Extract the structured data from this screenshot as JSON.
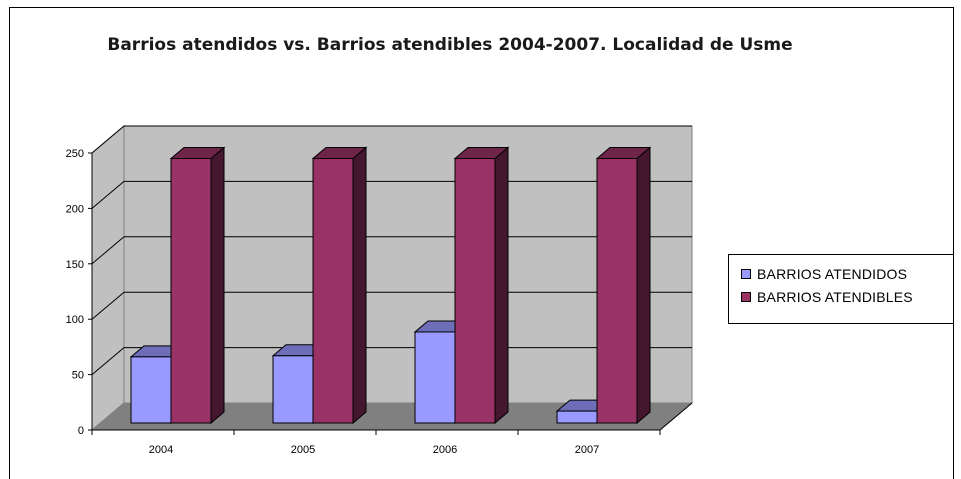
{
  "chart_data": {
    "type": "bar",
    "title": "Barrios atendidos vs. Barrios atendibles 2004-2007. Localidad de Usme",
    "categories": [
      "2004",
      "2005",
      "2006",
      "2007"
    ],
    "series": [
      {
        "name": "BARRIOS ATENDIDOS",
        "color": "#9999ff",
        "values": [
          61,
          62,
          84,
          11
        ]
      },
      {
        "name": "BARRIOS ATENDIBLES",
        "color": "#993366",
        "values": [
          244,
          244,
          244,
          244
        ]
      }
    ],
    "ylim": [
      0,
      250
    ],
    "yticks": [
      0,
      50,
      100,
      150,
      200,
      250
    ],
    "grid": true,
    "legend": "right",
    "three_d": true
  }
}
